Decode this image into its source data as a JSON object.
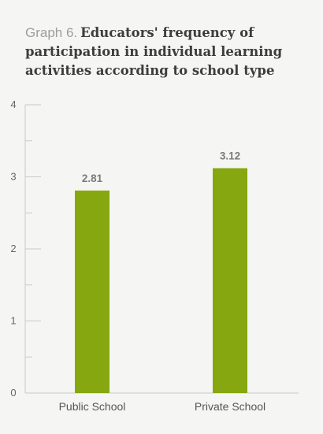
{
  "title": {
    "prefix": "Graph 6.",
    "text": "Educators' frequency of participation in individual learning activities according to school type"
  },
  "colors": {
    "bar": "#86a70f",
    "axis": "#c9c9c9",
    "background": "#f5f6f3"
  },
  "chart_data": {
    "type": "bar",
    "categories": [
      "Public School",
      "Private School"
    ],
    "values": [
      2.81,
      3.12
    ],
    "data_labels": [
      "2.81",
      "3.12"
    ],
    "ylim": [
      0,
      4
    ],
    "yticks": [
      0,
      1,
      2,
      3,
      4
    ],
    "ytick_labels": [
      "0",
      "1",
      "2",
      "3",
      "4"
    ],
    "minor_ticks": [
      0.5,
      1.5,
      2.5,
      3.5
    ],
    "grid": false,
    "legend": "none",
    "xlabel": "",
    "ylabel": ""
  }
}
